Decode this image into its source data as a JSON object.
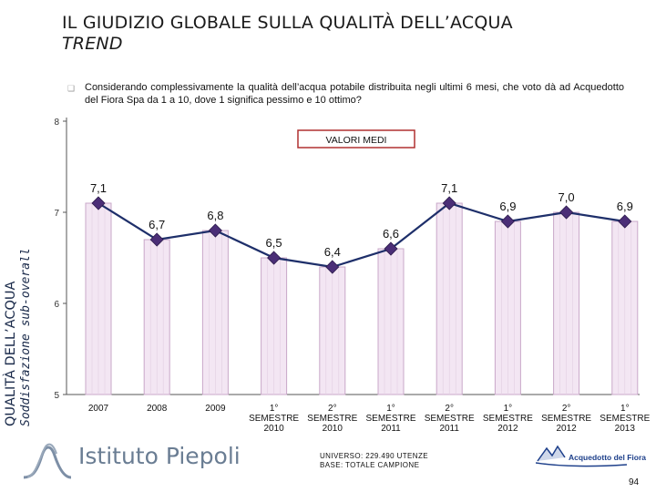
{
  "header": {
    "title": "IL GIUDIZIO GLOBALE SULLA QUALITÀ DELL’ACQUA",
    "subtitle": "TREND"
  },
  "question": "Considerando complessivamente la qualità dell’acqua potabile distribuita negli ultimi 6 mesi, che voto dà ad Acquedotto del Fiora Spa da 1 a 10, dove 1 significa pessimo e 10 ottimo?",
  "side_label": {
    "line1": "QUALITÀ DELL’ACQUA",
    "line2": "Soddisfazione sub-overall"
  },
  "chart_data": {
    "type": "bar",
    "title": "VALORI MEDI",
    "categories": [
      [
        "2007"
      ],
      [
        "2008"
      ],
      [
        "2009"
      ],
      [
        "1°",
        "SEMESTRE",
        "2010"
      ],
      [
        "2°",
        "SEMESTRE",
        "2010"
      ],
      [
        "1°",
        "SEMESTRE",
        "2011"
      ],
      [
        "2°",
        "SEMESTRE",
        "2011"
      ],
      [
        "1°",
        "SEMESTRE",
        "2012"
      ],
      [
        "2°",
        "SEMESTRE",
        "2012"
      ],
      [
        "1°",
        "SEMESTRE",
        "2013"
      ]
    ],
    "values": [
      7.1,
      6.7,
      6.8,
      6.5,
      6.4,
      6.6,
      7.1,
      6.9,
      7.0,
      6.9
    ],
    "value_labels": [
      "7,1",
      "6,7",
      "6,8",
      "6,5",
      "6,4",
      "6,6",
      "7,1",
      "6,9",
      "7,0",
      "6,9"
    ],
    "overlay": "line with diamond markers",
    "ylim": [
      5,
      8
    ],
    "yticks": [
      "5",
      "6",
      "7",
      "8"
    ],
    "xlabel": "",
    "ylabel": "",
    "grid": false
  },
  "footer": {
    "brand": "Istituto Piepoli",
    "universe": "UNIVERSO: 229.490 UTENZE",
    "base": "BASE: TOTALE CAMPIONE",
    "client": "Acquedotto del Fiora",
    "page": "94"
  },
  "colors": {
    "bar_fill": "#f3e6f3",
    "bar_edge": "#c9a8c9",
    "marker": "#4b2e77",
    "line": "#1e2f6a",
    "axis": "#555555"
  }
}
